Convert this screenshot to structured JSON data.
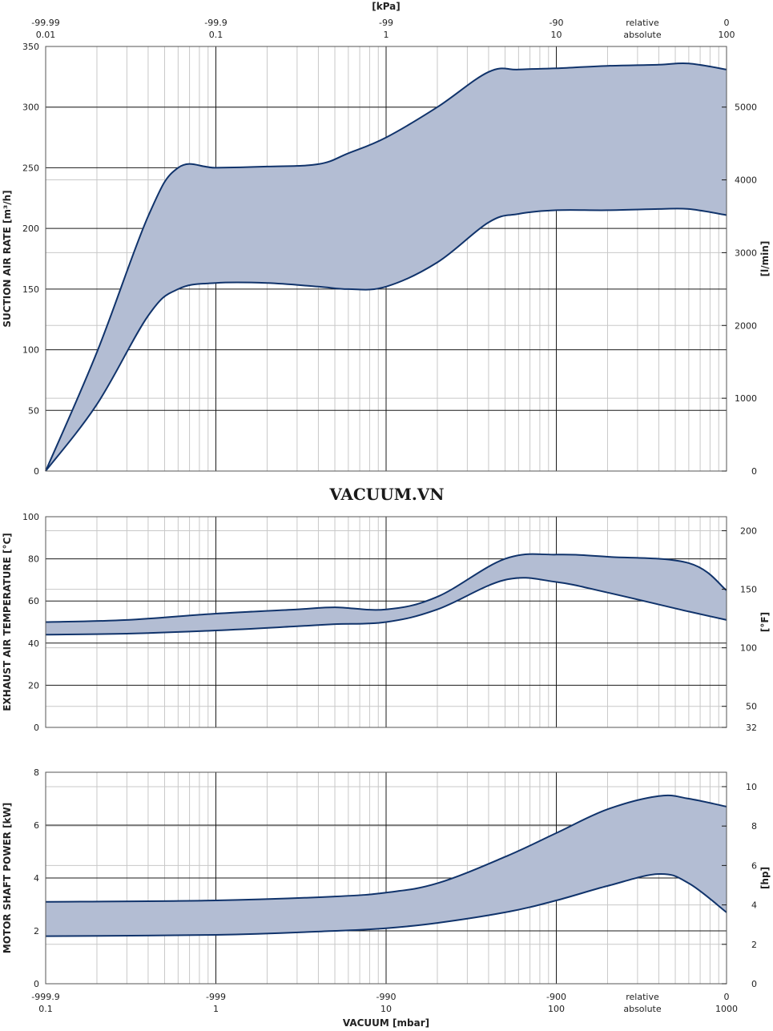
{
  "watermark": "VACUUM.VN",
  "colors": {
    "band_fill": "#b3bdd3",
    "band_line": "#10336b",
    "major_grid": "#1a1a1a",
    "minor_grid": "#c8c8c8"
  },
  "x_axis": {
    "scale": "log",
    "absolute_mbar_range": [
      0.1,
      1000
    ],
    "top_unit": "[kPa]",
    "top_ticks": [
      {
        "abs_mbar": 0.1,
        "relative": "-99.99",
        "absolute": "0.01"
      },
      {
        "abs_mbar": 1,
        "relative": "-99.9",
        "absolute": "0.1"
      },
      {
        "abs_mbar": 10,
        "relative": "-99",
        "absolute": "1"
      },
      {
        "abs_mbar": 100,
        "relative": "-90",
        "absolute": "10"
      },
      {
        "abs_mbar": 1000,
        "relative": "0",
        "absolute": "100"
      }
    ],
    "bottom_unit": "VACUUM  [mbar]",
    "bottom_ticks": [
      {
        "abs_mbar": 0.1,
        "relative": "-999.9",
        "absolute": "0.1"
      },
      {
        "abs_mbar": 1,
        "relative": "-999",
        "absolute": "1"
      },
      {
        "abs_mbar": 10,
        "relative": "-990",
        "absolute": "10"
      },
      {
        "abs_mbar": 100,
        "relative": "-900",
        "absolute": "100"
      },
      {
        "abs_mbar": 1000,
        "relative": "0",
        "absolute": "1000"
      }
    ],
    "row_labels": {
      "relative": "relative",
      "absolute": "absolute"
    }
  },
  "chart_data": [
    {
      "type": "area",
      "ylabel": "SUCTION AIR RATE  [m³/h]",
      "ylim": [
        0,
        350
      ],
      "yticks": [
        "0",
        "50",
        "100",
        "150",
        "200",
        "250",
        "300",
        "350"
      ],
      "y2label": "[l/min]",
      "y2lim": [
        0,
        5833
      ],
      "y2ticks": [
        "0",
        "1000",
        "2000",
        "3000",
        "4000",
        "5000"
      ],
      "x": [
        0.1,
        0.2,
        0.4,
        0.6,
        1,
        2,
        4,
        6,
        10,
        20,
        40,
        60,
        100,
        200,
        400,
        600,
        1000
      ],
      "series": [
        {
          "values": [
            0,
            98,
            210,
            250,
            250,
            251,
            253,
            262,
            275,
            300,
            329,
            331,
            332,
            334,
            335,
            336,
            331
          ]
        },
        {
          "values": [
            0,
            55,
            128,
            150,
            155,
            155,
            152,
            150,
            152,
            172,
            205,
            212,
            215,
            215,
            216,
            216,
            211
          ]
        }
      ]
    },
    {
      "type": "area",
      "ylabel": "EXHAUST AIR TEMPERATURE  [°C]",
      "ylim": [
        0,
        100
      ],
      "yticks": [
        "0",
        "20",
        "40",
        "60",
        "80",
        "100"
      ],
      "y2label": "[°F]",
      "y2lim": [
        32,
        212
      ],
      "y2ticks": [
        "32",
        "50",
        "100",
        "150",
        "200"
      ],
      "x": [
        0.1,
        0.3,
        1,
        3,
        5,
        10,
        20,
        50,
        100,
        200,
        600,
        1000
      ],
      "series": [
        {
          "values": [
            50,
            51,
            54,
            56,
            57,
            56,
            62,
            80,
            82,
            81,
            78,
            65
          ]
        },
        {
          "values": [
            44,
            44.5,
            46,
            48,
            49,
            50,
            56,
            70,
            69,
            64,
            55,
            51
          ]
        }
      ]
    },
    {
      "type": "area",
      "ylabel": "MOTOR SHAFT POWER  [kW]",
      "ylim": [
        0,
        8
      ],
      "yticks": [
        "0",
        "2",
        "4",
        "6",
        "8"
      ],
      "y2label": "[hp]",
      "y2lim": [
        0,
        10.73
      ],
      "y2ticks": [
        "0",
        "2",
        "4",
        "6",
        "8",
        "10"
      ],
      "x": [
        0.1,
        1,
        5,
        10,
        20,
        50,
        100,
        200,
        400,
        600,
        1000
      ],
      "series": [
        {
          "values": [
            3.1,
            3.15,
            3.3,
            3.45,
            3.8,
            4.8,
            5.7,
            6.6,
            7.1,
            7.0,
            6.7
          ]
        },
        {
          "values": [
            1.8,
            1.85,
            2.0,
            2.1,
            2.3,
            2.7,
            3.15,
            3.7,
            4.15,
            3.8,
            2.7
          ]
        }
      ]
    }
  ]
}
